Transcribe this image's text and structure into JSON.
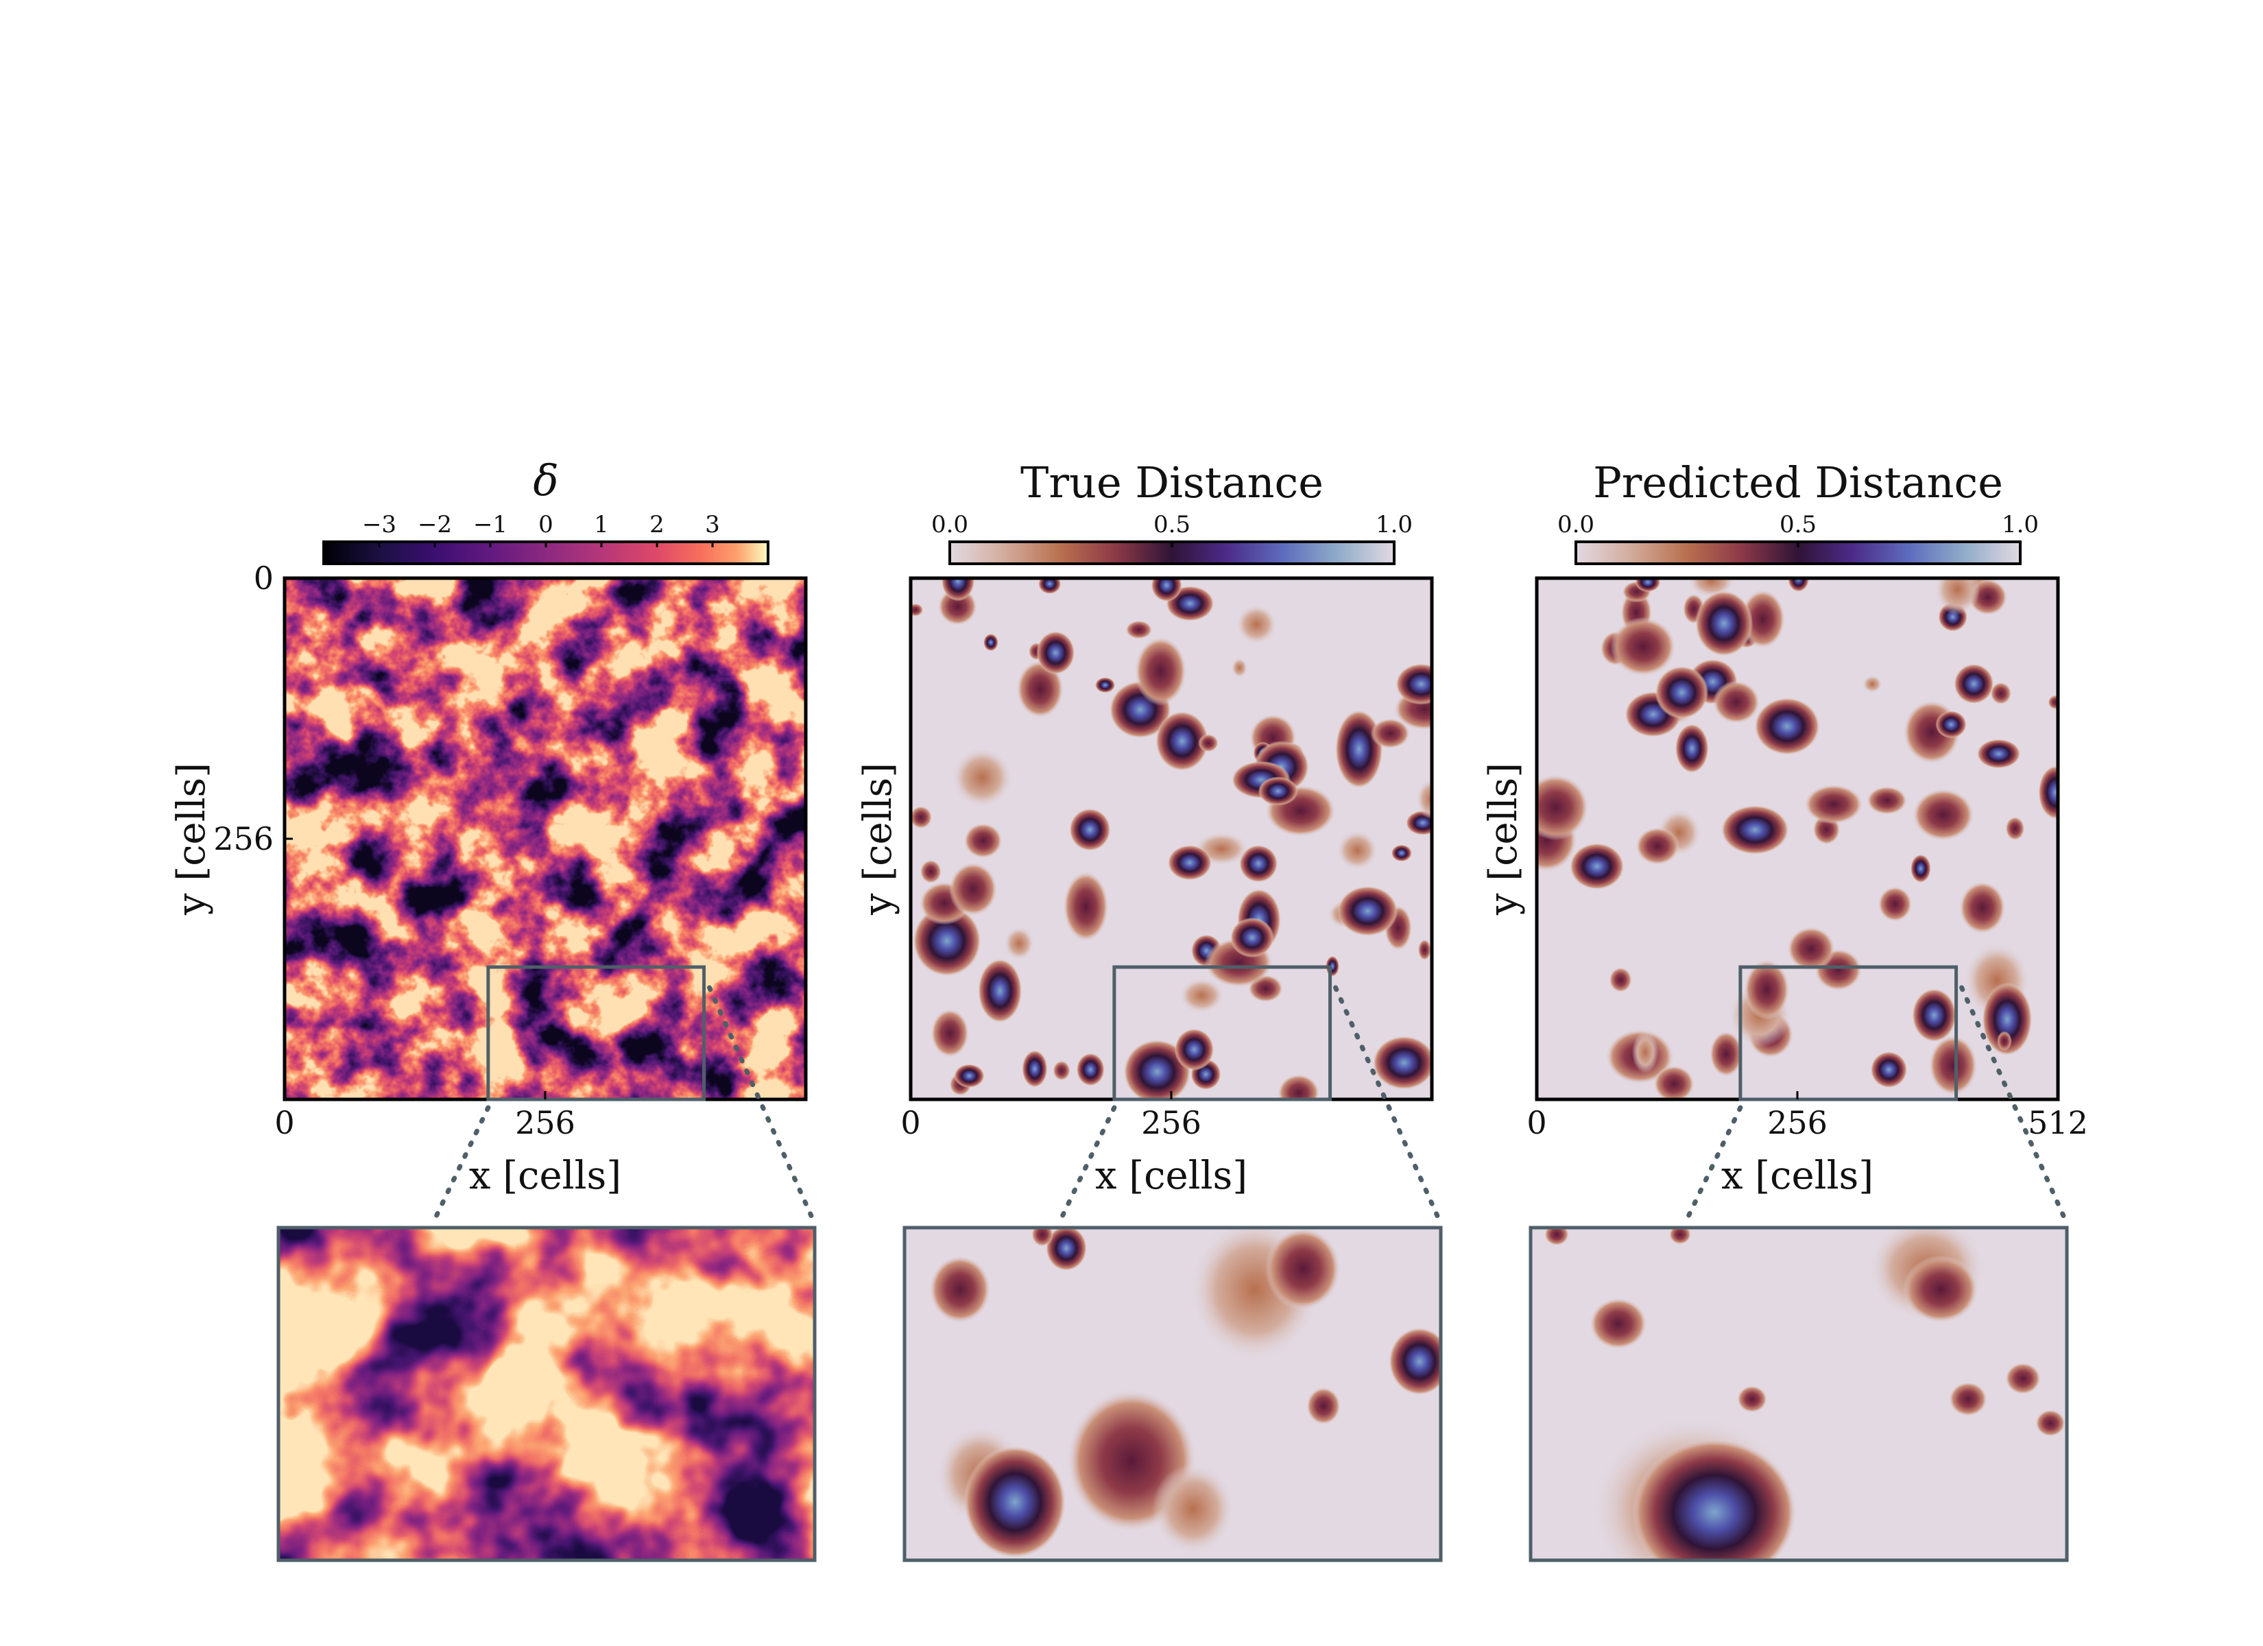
{
  "chart_data": [
    {
      "type": "heatmap",
      "colorbar_title": "δ",
      "colormap": "magma",
      "colorbar_ticks": [
        "−3",
        "−2",
        "−1",
        "0",
        "1",
        "2",
        "3"
      ],
      "colorbar_tick_values": [
        -3,
        -2,
        -1,
        0,
        1,
        2,
        3
      ],
      "colorbar_range": [
        -4,
        4
      ],
      "xlabel": "x [cells]",
      "ylabel": "y [cells]",
      "xticks": [
        "0",
        "256"
      ],
      "xtick_values": [
        0,
        256
      ],
      "yticks": [
        "0",
        "256"
      ],
      "ytick_values": [
        0,
        256
      ],
      "xlim": [
        0,
        512
      ],
      "ylim": [
        0,
        512
      ],
      "zoom_region": {
        "x": [
          200,
          412
        ],
        "y": [
          382,
          512
        ]
      }
    },
    {
      "type": "heatmap",
      "colorbar_title": "True Distance",
      "colormap": "twilight",
      "colorbar_ticks": [
        "0.0",
        "0.5",
        "1.0"
      ],
      "colorbar_tick_values": [
        0.0,
        0.5,
        1.0
      ],
      "colorbar_range": [
        0,
        1
      ],
      "xlabel": "x [cells]",
      "ylabel": "y [cells]",
      "xticks": [
        "0",
        "256"
      ],
      "xtick_values": [
        0,
        256
      ],
      "yticks": [],
      "xlim": [
        0,
        512
      ],
      "ylim": [
        0,
        512
      ],
      "zoom_region": {
        "x": [
          200,
          412
        ],
        "y": [
          382,
          512
        ]
      }
    },
    {
      "type": "heatmap",
      "colorbar_title": "Predicted Distance",
      "colormap": "twilight",
      "colorbar_ticks": [
        "0.0",
        "0.5",
        "1.0"
      ],
      "colorbar_tick_values": [
        0.0,
        0.5,
        1.0
      ],
      "colorbar_range": [
        0,
        1
      ],
      "xlabel": "x [cells]",
      "ylabel": "y [cells]",
      "xticks": [
        "0",
        "256",
        "512"
      ],
      "xtick_values": [
        0,
        256,
        512
      ],
      "yticks": [],
      "xlim": [
        0,
        512
      ],
      "ylim": [
        0,
        512
      ],
      "zoom_region": {
        "x": [
          200,
          412
        ],
        "y": [
          382,
          512
        ]
      }
    }
  ]
}
